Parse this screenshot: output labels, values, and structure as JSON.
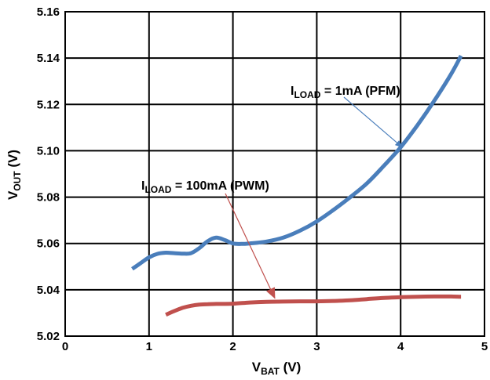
{
  "chart_data": {
    "type": "line",
    "xlabel": {
      "main": "V",
      "sub": "BAT",
      "rest": " (V)"
    },
    "ylabel": {
      "main": "V",
      "sub": "OUT",
      "rest": " (V)"
    },
    "xlim": [
      0,
      5
    ],
    "ylim": [
      5.02,
      5.16
    ],
    "x_ticks": [
      0,
      1,
      2,
      3,
      4,
      5
    ],
    "y_ticks": [
      5.02,
      5.04,
      5.06,
      5.08,
      5.1,
      5.12,
      5.14,
      5.16
    ],
    "x_tick_labels": [
      "0",
      "1",
      "2",
      "3",
      "4",
      "5"
    ],
    "y_tick_labels": [
      "5.02",
      "5.04",
      "5.06",
      "5.08",
      "5.10",
      "5.12",
      "5.14",
      "5.16"
    ],
    "grid": true,
    "series": [
      {
        "color": "#4a7ebb",
        "x": [
          0.8,
          0.9,
          1.0,
          1.1,
          1.2,
          1.3,
          1.4,
          1.5,
          1.6,
          1.7,
          1.8,
          1.9,
          2.0,
          2.1,
          2.2,
          2.4,
          2.6,
          2.8,
          3.0,
          3.2,
          3.4,
          3.6,
          3.8,
          4.0,
          4.2,
          4.4,
          4.6,
          4.72
        ],
        "y": [
          5.049,
          5.0515,
          5.054,
          5.0555,
          5.056,
          5.0558,
          5.0556,
          5.0558,
          5.058,
          5.061,
          5.0625,
          5.0615,
          5.06,
          5.0598,
          5.06,
          5.0608,
          5.0625,
          5.0655,
          5.0695,
          5.0745,
          5.08,
          5.086,
          5.0935,
          5.1015,
          5.111,
          5.1215,
          5.133,
          5.141
        ]
      },
      {
        "color": "#c0504d",
        "x": [
          1.2,
          1.3,
          1.4,
          1.5,
          1.6,
          1.7,
          1.8,
          2.0,
          2.2,
          2.4,
          2.6,
          2.8,
          3.0,
          3.2,
          3.4,
          3.6,
          3.8,
          4.0,
          4.2,
          4.4,
          4.6,
          4.72
        ],
        "y": [
          5.0292,
          5.0308,
          5.0322,
          5.0331,
          5.0336,
          5.0338,
          5.0339,
          5.034,
          5.0345,
          5.0348,
          5.0349,
          5.035,
          5.035,
          5.0352,
          5.0355,
          5.036,
          5.0365,
          5.0368,
          5.037,
          5.0371,
          5.0371,
          5.037
        ]
      }
    ],
    "annotations": [
      {
        "main": "I",
        "sub": "LOAD",
        "rest": " = 1mA (PFM)",
        "arrow_color": "#4a7ebb",
        "arrow_to": [
          4.02,
          5.1015
        ]
      },
      {
        "main": "I",
        "sub": "LOAD",
        "rest": " = 100mA (PWM)",
        "arrow_color": "#c0504d",
        "arrow_to": [
          2.5,
          5.035
        ]
      }
    ]
  }
}
